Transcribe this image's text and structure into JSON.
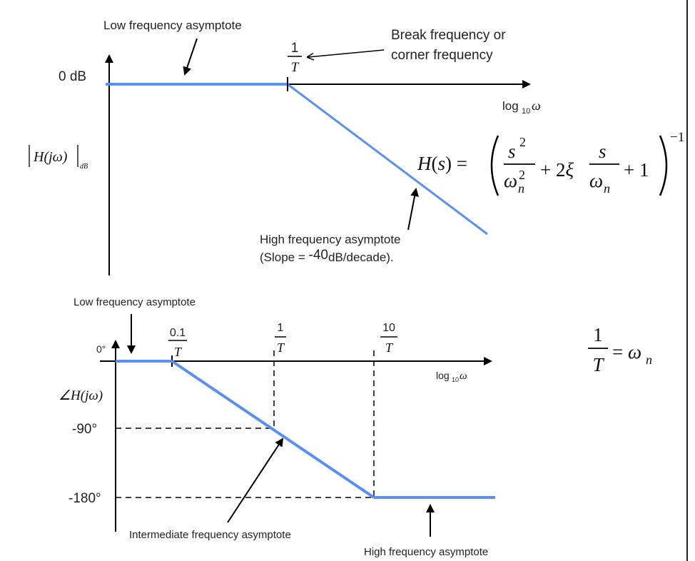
{
  "top_plot": {
    "annot_low": "Low frequency asymptote",
    "annot_break_line1": "Break frequency or",
    "annot_break_line2": "corner frequency",
    "frac_num": "1",
    "frac_den": "T",
    "ylabel": "0 dB",
    "xlabel_base": "log",
    "xlabel_sub": "10",
    "xlabel_var": "ω",
    "mag_label_main": "H(jω)",
    "mag_label_sub": "dB",
    "annot_high_line1": "High frequency asymptote",
    "annot_high_line2_a": "(Slope = ",
    "annot_high_line2_b": "-40",
    "annot_high_line2_c": "dB/decade)."
  },
  "transfer_function": {
    "lhs": "H(s) =",
    "num1": "s",
    "num1_exp": "2",
    "den1": "ω",
    "den1_sub": "n",
    "den1_exp": "2",
    "mid": "+ 2ξ",
    "num2": "s",
    "den2": "ω",
    "den2_sub": "n",
    "tail": "+ 1",
    "exponent": "−1"
  },
  "relation": {
    "num": "1",
    "den": "T",
    "rhs": "= ω",
    "rhs_sub": "n"
  },
  "bottom_plot": {
    "annot_low": "Low frequency asymptote",
    "tick1_num": "0.1",
    "tick1_den": "T",
    "tick2_num": "1",
    "tick2_den": "T",
    "tick3_num": "10",
    "tick3_den": "T",
    "y0": "0°",
    "y90": "-90°",
    "y180": "-180°",
    "phase_label": "∠H(jω)",
    "xlabel_base": "log",
    "xlabel_sub": "10",
    "xlabel_var": "ω",
    "annot_mid": "Intermediate frequency asymptote",
    "annot_high": "High frequency asymptote"
  },
  "colors": {
    "asymptote": "#5b8ff0",
    "axis": "#000000"
  }
}
